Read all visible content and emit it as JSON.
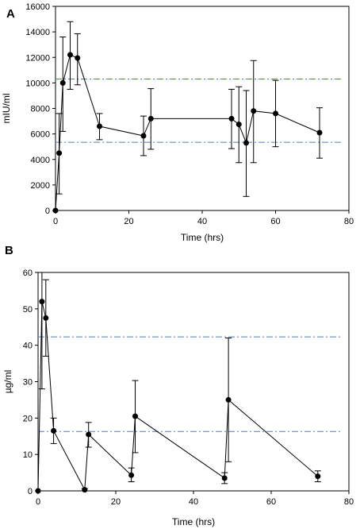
{
  "chart_data": [
    {
      "panel": "A",
      "type": "line",
      "xlabel": "Time (hrs)",
      "ylabel": "mIU/ml",
      "xlim": [
        0,
        80
      ],
      "ylim": [
        0,
        16000
      ],
      "xticks": [
        0,
        20,
        40,
        60,
        80
      ],
      "yticks": [
        0,
        2000,
        4000,
        6000,
        8000,
        10000,
        12000,
        14000,
        16000
      ],
      "grid": false,
      "series": [
        {
          "x": [
            0,
            1,
            2,
            4,
            6,
            12,
            24,
            26,
            48,
            50,
            52,
            54,
            60,
            72
          ],
          "y": [
            0,
            4500,
            10000,
            12200,
            11950,
            6600,
            5850,
            7200,
            7200,
            6750,
            5300,
            7800,
            7600,
            6100
          ],
          "err_low": [
            0,
            3200,
            3800,
            2700,
            2100,
            1050,
            1550,
            2400,
            2350,
            3000,
            4200,
            4050,
            2600,
            2000
          ],
          "err_high": [
            0,
            3100,
            3600,
            2600,
            1900,
            1000,
            1550,
            2350,
            2300,
            2950,
            4100,
            3950,
            2600,
            1950
          ]
        }
      ],
      "reference_lines": [
        {
          "y": 10300,
          "color": "#4a7ebb",
          "style": "dash-dot"
        },
        {
          "y": 5350,
          "color": "#4a7ebb",
          "style": "dash-dot"
        }
      ]
    },
    {
      "panel": "B",
      "type": "line",
      "xlabel": "Time (hrs)",
      "ylabel": "µg/ml",
      "xlim": [
        0,
        80
      ],
      "ylim": [
        0,
        60
      ],
      "xticks": [
        0,
        20,
        40,
        60,
        80
      ],
      "yticks": [
        0,
        10,
        20,
        30,
        40,
        50,
        60
      ],
      "grid": false,
      "series": [
        {
          "x": [
            0,
            1,
            2,
            4,
            12,
            13,
            24,
            25,
            48,
            49,
            72
          ],
          "y": [
            0,
            52,
            47.5,
            16.5,
            0.3,
            15.5,
            4.3,
            20.5,
            3.5,
            25,
            4
          ],
          "err_low": [
            0,
            24,
            10.5,
            3.5,
            0.3,
            3.5,
            1.8,
            10,
            1.5,
            17,
            1.5
          ],
          "err_high": [
            0,
            8,
            10.5,
            3.5,
            0.3,
            3.3,
            2,
            9.8,
            1.5,
            17,
            1.5
          ]
        }
      ],
      "reference_lines": [
        {
          "y": 42.3,
          "color": "#4a7ebb",
          "style": "dash-dot"
        },
        {
          "y": 16.3,
          "color": "#4a7ebb",
          "style": "dash-dot"
        }
      ]
    }
  ]
}
